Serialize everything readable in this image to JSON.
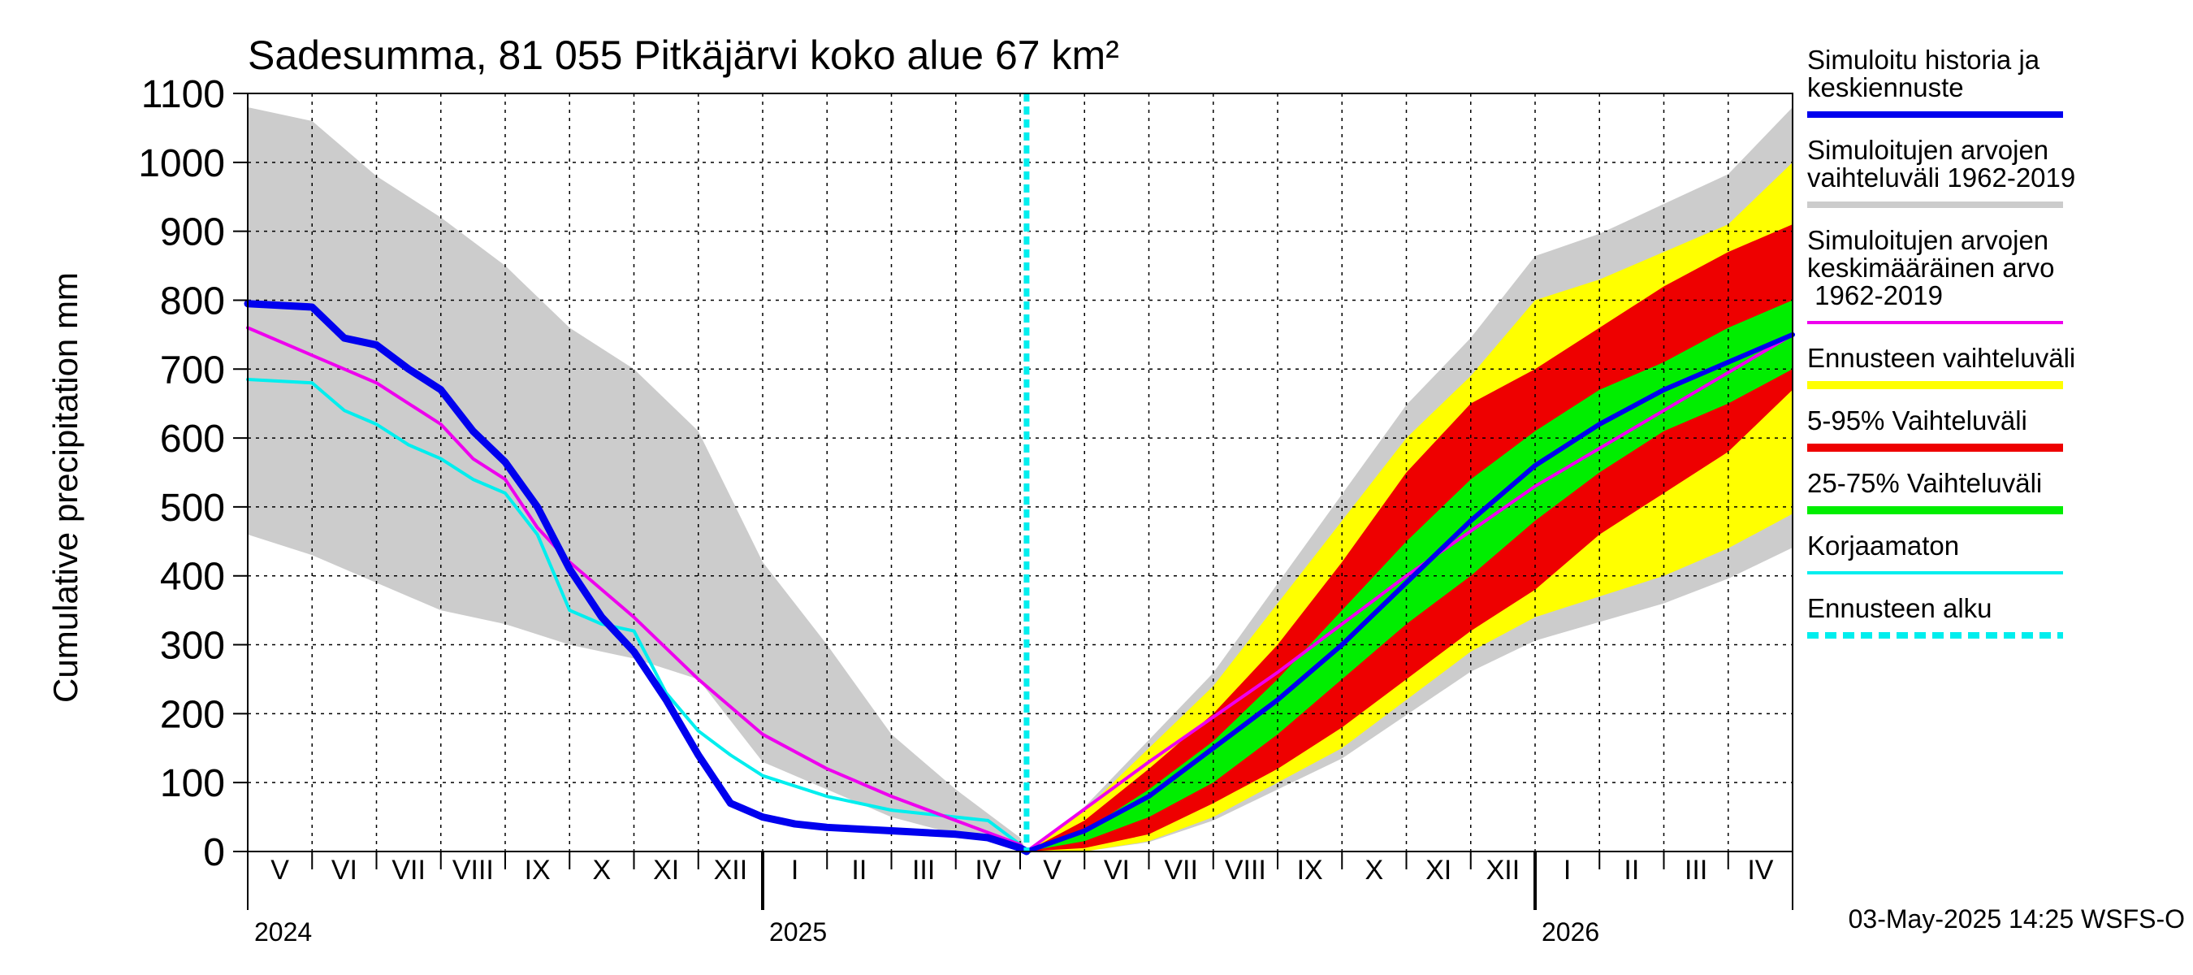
{
  "chart_data": {
    "type": "area",
    "title": "Sadesumma, 81 055 Pitkäjärvi koko alue 67 km²",
    "ylabel": "Cumulative precipitation   mm",
    "xlabel": "",
    "ylim": [
      0,
      1100
    ],
    "yticks": [
      0,
      100,
      200,
      300,
      400,
      500,
      600,
      700,
      800,
      900,
      1000,
      1100
    ],
    "x_unit": "months since 2024-05-01",
    "xlim": [
      0,
      24
    ],
    "month_labels": [
      "V",
      "VI",
      "VII",
      "VIII",
      "IX",
      "X",
      "XI",
      "XII",
      "I",
      "II",
      "III",
      "IV",
      "V",
      "VI",
      "VII",
      "VIII",
      "IX",
      "X",
      "XI",
      "XII",
      "I",
      "II",
      "III",
      "IV"
    ],
    "year_labels": [
      {
        "label": "2024",
        "at": 0
      },
      {
        "label": "2025",
        "at": 8
      },
      {
        "label": "2026",
        "at": 20
      }
    ],
    "forecast_start": 12.1,
    "footer": "03-May-2025 14:25 WSFS-O",
    "legend": [
      {
        "label": "Simuloitu historia ja keskiennuste",
        "color": "#0000ee",
        "width": 8,
        "dashed": false
      },
      {
        "label": "Simuloitujen arvojen vaihteluväli 1962-2019",
        "color": "#cccccc",
        "width": 8,
        "dashed": false
      },
      {
        "label": "Simuloitujen arvojen keskimääräinen arvo 1962-2019",
        "color": "#ee00ee",
        "width": 4,
        "dashed": false
      },
      {
        "label": "Ennusteen vaihteluväli",
        "color": "#ffff00",
        "width": 10,
        "dashed": false
      },
      {
        "label": "5-95% Vaihteluväli",
        "color": "#ee0000",
        "width": 10,
        "dashed": false
      },
      {
        "label": "25-75% Vaihteluväli",
        "color": "#00ee00",
        "width": 10,
        "dashed": false
      },
      {
        "label": "Korjaamaton",
        "color": "#00eeee",
        "width": 4,
        "dashed": false
      },
      {
        "label": "Ennusteen alku",
        "color": "#00eeee",
        "width": 8,
        "dashed": true
      }
    ],
    "series": [
      {
        "name": "Simuloitujen arvojen vaihteluväli 1962-2019 (max)",
        "color": "#cccccc",
        "x": [
          0,
          1,
          2,
          3,
          4,
          5,
          6,
          7,
          8,
          9,
          10,
          11,
          12,
          12.1
        ],
        "values": [
          1080,
          1060,
          980,
          920,
          850,
          760,
          700,
          610,
          420,
          300,
          170,
          90,
          20,
          0
        ]
      },
      {
        "name": "Simuloitujen arvojen vaihteluväli 1962-2019 (min)",
        "color": "#cccccc",
        "x": [
          0,
          1,
          2,
          3,
          4,
          5,
          6,
          7,
          8,
          9,
          10,
          11,
          12,
          12.1
        ],
        "values": [
          460,
          430,
          390,
          350,
          330,
          300,
          280,
          250,
          130,
          90,
          50,
          25,
          5,
          0
        ]
      },
      {
        "name": "Simuloitu historia ja keskiennuste",
        "color": "#0000ee",
        "x": [
          0,
          1,
          1.5,
          2,
          2.5,
          3,
          3.5,
          4,
          4.5,
          5,
          5.5,
          6,
          6.5,
          7,
          7.5,
          8,
          8.5,
          9,
          10,
          11,
          11.5,
          12,
          12.1
        ],
        "values": [
          795,
          790,
          745,
          735,
          700,
          670,
          610,
          565,
          500,
          410,
          340,
          290,
          220,
          140,
          70,
          50,
          40,
          35,
          30,
          25,
          20,
          5,
          0
        ]
      },
      {
        "name": "Simuloitujen arvojen keskimääräinen arvo 1962-2019",
        "color": "#ee00ee",
        "x": [
          0,
          1,
          2,
          3,
          3.5,
          4,
          4.5,
          5,
          6,
          7,
          8,
          9,
          10,
          11,
          12,
          12.1,
          14,
          16,
          18,
          20,
          22,
          24
        ],
        "values": [
          760,
          720,
          680,
          620,
          570,
          540,
          470,
          420,
          340,
          250,
          170,
          120,
          80,
          45,
          10,
          0,
          130,
          260,
          400,
          530,
          640,
          750
        ]
      },
      {
        "name": "Korjaamaton",
        "color": "#00eeee",
        "x": [
          0,
          1,
          1.5,
          2,
          2.5,
          3,
          3.5,
          4,
          4.5,
          5,
          5.5,
          6,
          6.5,
          7,
          7.5,
          8,
          9,
          10,
          11,
          11.5,
          12,
          12.1
        ],
        "values": [
          685,
          680,
          640,
          620,
          590,
          570,
          540,
          520,
          460,
          350,
          330,
          320,
          230,
          175,
          140,
          110,
          80,
          60,
          50,
          45,
          10,
          0
        ]
      },
      {
        "name": "Ennusteen vaihteluväli (max)",
        "color": "#ffff00",
        "x": [
          12.1,
          13,
          14,
          15,
          16,
          17,
          18,
          19,
          20,
          21,
          22,
          23,
          24
        ],
        "values": [
          0,
          60,
          150,
          240,
          360,
          480,
          600,
          690,
          800,
          830,
          870,
          910,
          1000
        ]
      },
      {
        "name": "Ennusteen vaihteluväli (min)",
        "color": "#ffff00",
        "x": [
          12.1,
          13,
          14,
          15,
          16,
          17,
          18,
          19,
          20,
          21,
          22,
          23,
          24
        ],
        "values": [
          0,
          0,
          15,
          50,
          100,
          150,
          220,
          290,
          340,
          370,
          400,
          440,
          490
        ]
      },
      {
        "name": "5-95% Vaihteluväli (max)",
        "color": "#ee0000",
        "x": [
          12.1,
          13,
          14,
          15,
          16,
          17,
          18,
          19,
          20,
          21,
          22,
          23,
          24
        ],
        "values": [
          0,
          45,
          120,
          200,
          300,
          420,
          550,
          650,
          700,
          760,
          820,
          870,
          910
        ]
      },
      {
        "name": "5-95% Vaihteluväli (min)",
        "color": "#ee0000",
        "x": [
          12.1,
          13,
          14,
          15,
          16,
          17,
          18,
          19,
          20,
          21,
          22,
          23,
          24
        ],
        "values": [
          0,
          5,
          25,
          70,
          120,
          180,
          250,
          320,
          380,
          460,
          520,
          580,
          670
        ]
      },
      {
        "name": "25-75% Vaihteluväli (max)",
        "color": "#00ee00",
        "x": [
          12.1,
          13,
          14,
          15,
          16,
          17,
          18,
          19,
          20,
          21,
          22,
          23,
          24
        ],
        "values": [
          0,
          30,
          90,
          160,
          250,
          350,
          450,
          540,
          610,
          670,
          710,
          760,
          800
        ]
      },
      {
        "name": "25-75% Vaihteluväli (min)",
        "color": "#00ee00",
        "x": [
          12.1,
          13,
          14,
          15,
          16,
          17,
          18,
          19,
          20,
          21,
          22,
          23,
          24
        ],
        "values": [
          0,
          15,
          50,
          100,
          170,
          250,
          330,
          400,
          480,
          550,
          610,
          650,
          700
        ]
      },
      {
        "name": "Keskiennuste",
        "color": "#0000ee",
        "x": [
          12.1,
          13,
          14,
          15,
          16,
          17,
          18,
          19,
          20,
          21,
          22,
          23,
          24
        ],
        "values": [
          0,
          30,
          80,
          150,
          220,
          300,
          390,
          480,
          560,
          620,
          670,
          710,
          750
        ]
      }
    ]
  }
}
